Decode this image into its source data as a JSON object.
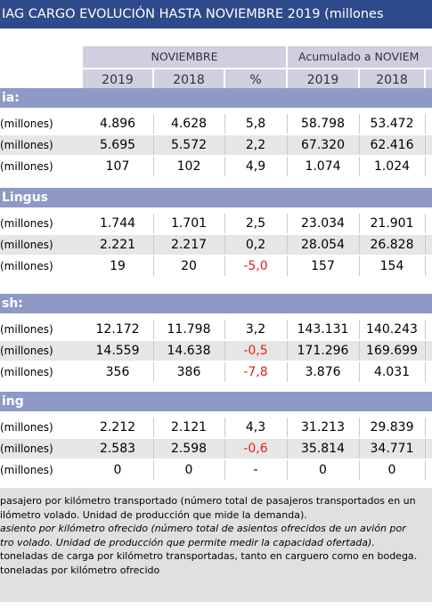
{
  "title": "IAG CARGO EVOLUCIÓN HASTA NOVIEMBRE 2019 (millones",
  "header": {
    "group1": "NOVIEMBRE",
    "group2": "Acumulado a NOVIEM",
    "cols": [
      "2019",
      "2018",
      "%",
      "2019",
      "2018"
    ]
  },
  "sections": [
    {
      "name": "ia:",
      "rows": [
        {
          "label": "(millones)",
          "values": [
            "4.896",
            "4.628",
            "5,8",
            "58.798",
            "53.472"
          ],
          "neg": false
        },
        {
          "label": "(millones)",
          "values": [
            "5.695",
            "5.572",
            "2,2",
            "67.320",
            "62.416"
          ],
          "neg": false
        },
        {
          "label": "(millones)",
          "values": [
            "107",
            "102",
            "4,9",
            "1.074",
            "1.024"
          ],
          "neg": false
        }
      ]
    },
    {
      "name": "Lingus",
      "rows": [
        {
          "label": "(millones)",
          "values": [
            "1.744",
            "1.701",
            "2,5",
            "23.034",
            "21.901"
          ],
          "neg": false
        },
        {
          "label": "(millones)",
          "values": [
            "2.221",
            "2.217",
            "0,2",
            "28.054",
            "26.828"
          ],
          "neg": false
        },
        {
          "label": "(millones)",
          "values": [
            "19",
            "20",
            "-5,0",
            "157",
            "154"
          ],
          "neg": true
        }
      ]
    },
    {
      "name": "sh:",
      "rows": [
        {
          "label": "(millones)",
          "values": [
            "12.172",
            "11.798",
            "3,2",
            "143.131",
            "140.243"
          ],
          "neg": false
        },
        {
          "label": "(millones)",
          "values": [
            "14.559",
            "14.638",
            "-0,5",
            "171.296",
            "169.699"
          ],
          "neg": false
        },
        {
          "label": "(millones)",
          "values": [
            "356",
            "386",
            "-7,8",
            "3.876",
            "4.031"
          ],
          "neg": true
        }
      ]
    },
    {
      "name": "ing",
      "rows": [
        {
          "label": "(millones)",
          "values": [
            "2.212",
            "2.121",
            "4,3",
            "31.213",
            "29.839"
          ],
          "neg": false
        },
        {
          "label": "(millones)",
          "values": [
            "2.583",
            "2.598",
            "-0,6",
            "35.814",
            "34.771"
          ],
          "neg": true
        },
        {
          "label": "(millones)",
          "values": [
            "0",
            "0",
            "-",
            "0",
            "0"
          ],
          "neg": false
        }
      ]
    }
  ],
  "notes": [
    "pasajero por kilómetro transportado (número total de pasajeros transportados en un",
    "ilómetro volado. Unidad de producción que mide la demanda).",
    "asiento por kilómetro ofrecido (número total de asientos ofrecidos de un avión por",
    "tro volado. Unidad de producción que permite medir la capacidad ofertada).",
    "toneladas de carga por kilómetro transportadas, tanto en carguero como en bodega.",
    "toneladas por kilómetro ofrecido"
  ]
}
